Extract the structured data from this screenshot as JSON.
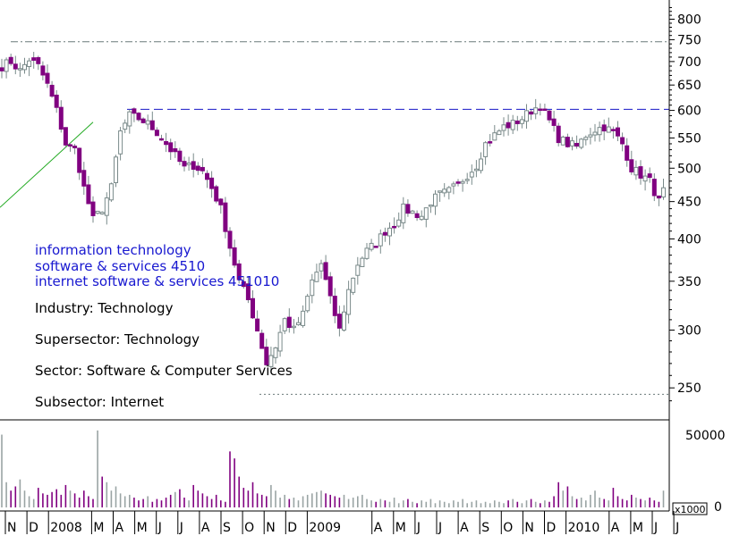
{
  "chart_data": {
    "type": "candlestick",
    "title": "",
    "xlabel": "",
    "ylabel": "",
    "price_axis": {
      "scale": "log",
      "range": [
        226,
        850
      ],
      "ticks": [
        800,
        750,
        700,
        650,
        600,
        550,
        500,
        450,
        400,
        350,
        300,
        250
      ]
    },
    "volume_axis": {
      "unit_label": "x1000",
      "range": [
        0,
        60000
      ],
      "ticks": [
        50000,
        0
      ]
    },
    "x_axis": {
      "labels": [
        "N",
        "D",
        "2008",
        "M",
        "A",
        "M",
        "J",
        "J",
        "A",
        "S",
        "O",
        "N",
        "D",
        "2009",
        "A",
        "M",
        "J",
        "J",
        "A",
        "S",
        "O",
        "N",
        "D",
        "2010",
        "A",
        "M",
        "J",
        "J"
      ]
    },
    "x_label_slots": [
      0,
      1,
      2,
      4,
      5,
      6,
      7,
      8,
      9,
      10,
      11,
      12,
      13,
      14,
      17,
      18,
      19,
      20,
      21,
      22,
      23,
      24,
      25,
      26,
      28,
      29,
      30,
      31
    ],
    "weeks": 146,
    "resistance_levels": [
      {
        "level": 745,
        "style": "dash-dot"
      },
      {
        "level": 602,
        "style": "dashed"
      },
      {
        "level": 245,
        "style": "dotted"
      }
    ],
    "trend_line": [
      {
        "week": -2,
        "value": 503
      },
      {
        "week": 20,
        "value": 562
      }
    ],
    "annotations_blue": [
      "information technology",
      "software & services 4510",
      "internet software & services 451010"
    ],
    "annotations_black": [
      "Industry: Technology",
      "Supersector: Technology",
      "Sector: Software & Computer Services",
      "Subsector: Internet"
    ],
    "close_anchors": [
      [
        0,
        690
      ],
      [
        2,
        700
      ],
      [
        4,
        680
      ],
      [
        6,
        705
      ],
      [
        8,
        690
      ],
      [
        10,
        650
      ],
      [
        12,
        600
      ],
      [
        14,
        540
      ],
      [
        16,
        530
      ],
      [
        18,
        470
      ],
      [
        20,
        425
      ],
      [
        22,
        440
      ],
      [
        24,
        470
      ],
      [
        26,
        560
      ],
      [
        28,
        590
      ],
      [
        30,
        585
      ],
      [
        32,
        575
      ],
      [
        34,
        560
      ],
      [
        36,
        540
      ],
      [
        38,
        520
      ],
      [
        40,
        500
      ],
      [
        42,
        505
      ],
      [
        44,
        495
      ],
      [
        46,
        470
      ],
      [
        48,
        440
      ],
      [
        50,
        390
      ],
      [
        52,
        350
      ],
      [
        54,
        330
      ],
      [
        56,
        300
      ],
      [
        58,
        270
      ],
      [
        60,
        285
      ],
      [
        62,
        310
      ],
      [
        64,
        300
      ],
      [
        66,
        315
      ],
      [
        68,
        350
      ],
      [
        70,
        370
      ],
      [
        72,
        330
      ],
      [
        74,
        300
      ],
      [
        76,
        340
      ],
      [
        78,
        370
      ],
      [
        80,
        385
      ],
      [
        82,
        395
      ],
      [
        84,
        410
      ],
      [
        86,
        420
      ],
      [
        88,
        440
      ],
      [
        90,
        435
      ],
      [
        92,
        430
      ],
      [
        94,
        450
      ],
      [
        96,
        460
      ],
      [
        98,
        465
      ],
      [
        100,
        475
      ],
      [
        102,
        490
      ],
      [
        104,
        505
      ],
      [
        106,
        540
      ],
      [
        108,
        555
      ],
      [
        110,
        570
      ],
      [
        112,
        575
      ],
      [
        114,
        585
      ],
      [
        116,
        600
      ],
      [
        118,
        610
      ],
      [
        120,
        580
      ],
      [
        122,
        550
      ],
      [
        124,
        540
      ],
      [
        126,
        535
      ],
      [
        128,
        555
      ],
      [
        130,
        565
      ],
      [
        132,
        570
      ],
      [
        134,
        560
      ],
      [
        136,
        540
      ],
      [
        138,
        500
      ],
      [
        140,
        490
      ],
      [
        142,
        480
      ],
      [
        144,
        450
      ],
      [
        145,
        465
      ]
    ],
    "volume": [
      52000,
      18000,
      12000,
      15000,
      20000,
      12000,
      8000,
      6000,
      14000,
      10000,
      9000,
      11000,
      13000,
      9000,
      16000,
      12000,
      10000,
      7000,
      12000,
      8000,
      6000,
      55000,
      22000,
      18000,
      12000,
      15000,
      10000,
      8000,
      9000,
      7000,
      5000,
      6000,
      8000,
      4000,
      6000,
      5000,
      7000,
      9000,
      11000,
      13000,
      7000,
      5000,
      16000,
      12000,
      10000,
      8000,
      6000,
      9000,
      5000,
      4000,
      40000,
      35000,
      22000,
      14000,
      12000,
      18000,
      10000,
      9000,
      8000,
      16000,
      12000,
      7000,
      9000,
      6000,
      7000,
      5000,
      8000,
      9000,
      10000,
      11000,
      12000,
      10000,
      9000,
      8000,
      7000,
      9000,
      6000,
      7000,
      8000,
      9000,
      6000,
      5000,
      4000,
      6000,
      5000,
      4000,
      7000,
      3000,
      5000,
      6000,
      4000,
      3000,
      5000,
      4000,
      6000,
      3000,
      5000,
      4000,
      3000,
      5000,
      4000,
      6000,
      3000,
      4000,
      5000,
      3000,
      4000,
      3000,
      5000,
      4000,
      3000,
      5000,
      6000,
      4000,
      3000,
      5000,
      6000,
      4000,
      3000,
      5000,
      4000,
      8000,
      18000,
      12000,
      15000,
      8000,
      6000,
      7000,
      5000,
      9000,
      12000,
      7000,
      6000,
      5000,
      14000,
      8000,
      6000,
      5000,
      9000,
      7000,
      6000,
      5000,
      7000,
      5000,
      4000,
      12000
    ]
  },
  "colors": {
    "down_fill": "#800080",
    "down_stroke": "#800080",
    "up_fill": "#ffffff",
    "up_stroke": "#7a8a8a",
    "wick": "#7a8a8a",
    "volume_up": "#9aa4a4",
    "volume_down": "#800080",
    "level_line_top": "#6a7a7a",
    "level_line_mid": "#1818c8",
    "level_line_low": "#6a7a7a",
    "trend_line": "#22aa22",
    "axis": "#000000",
    "text_blue": "#1818d0"
  }
}
